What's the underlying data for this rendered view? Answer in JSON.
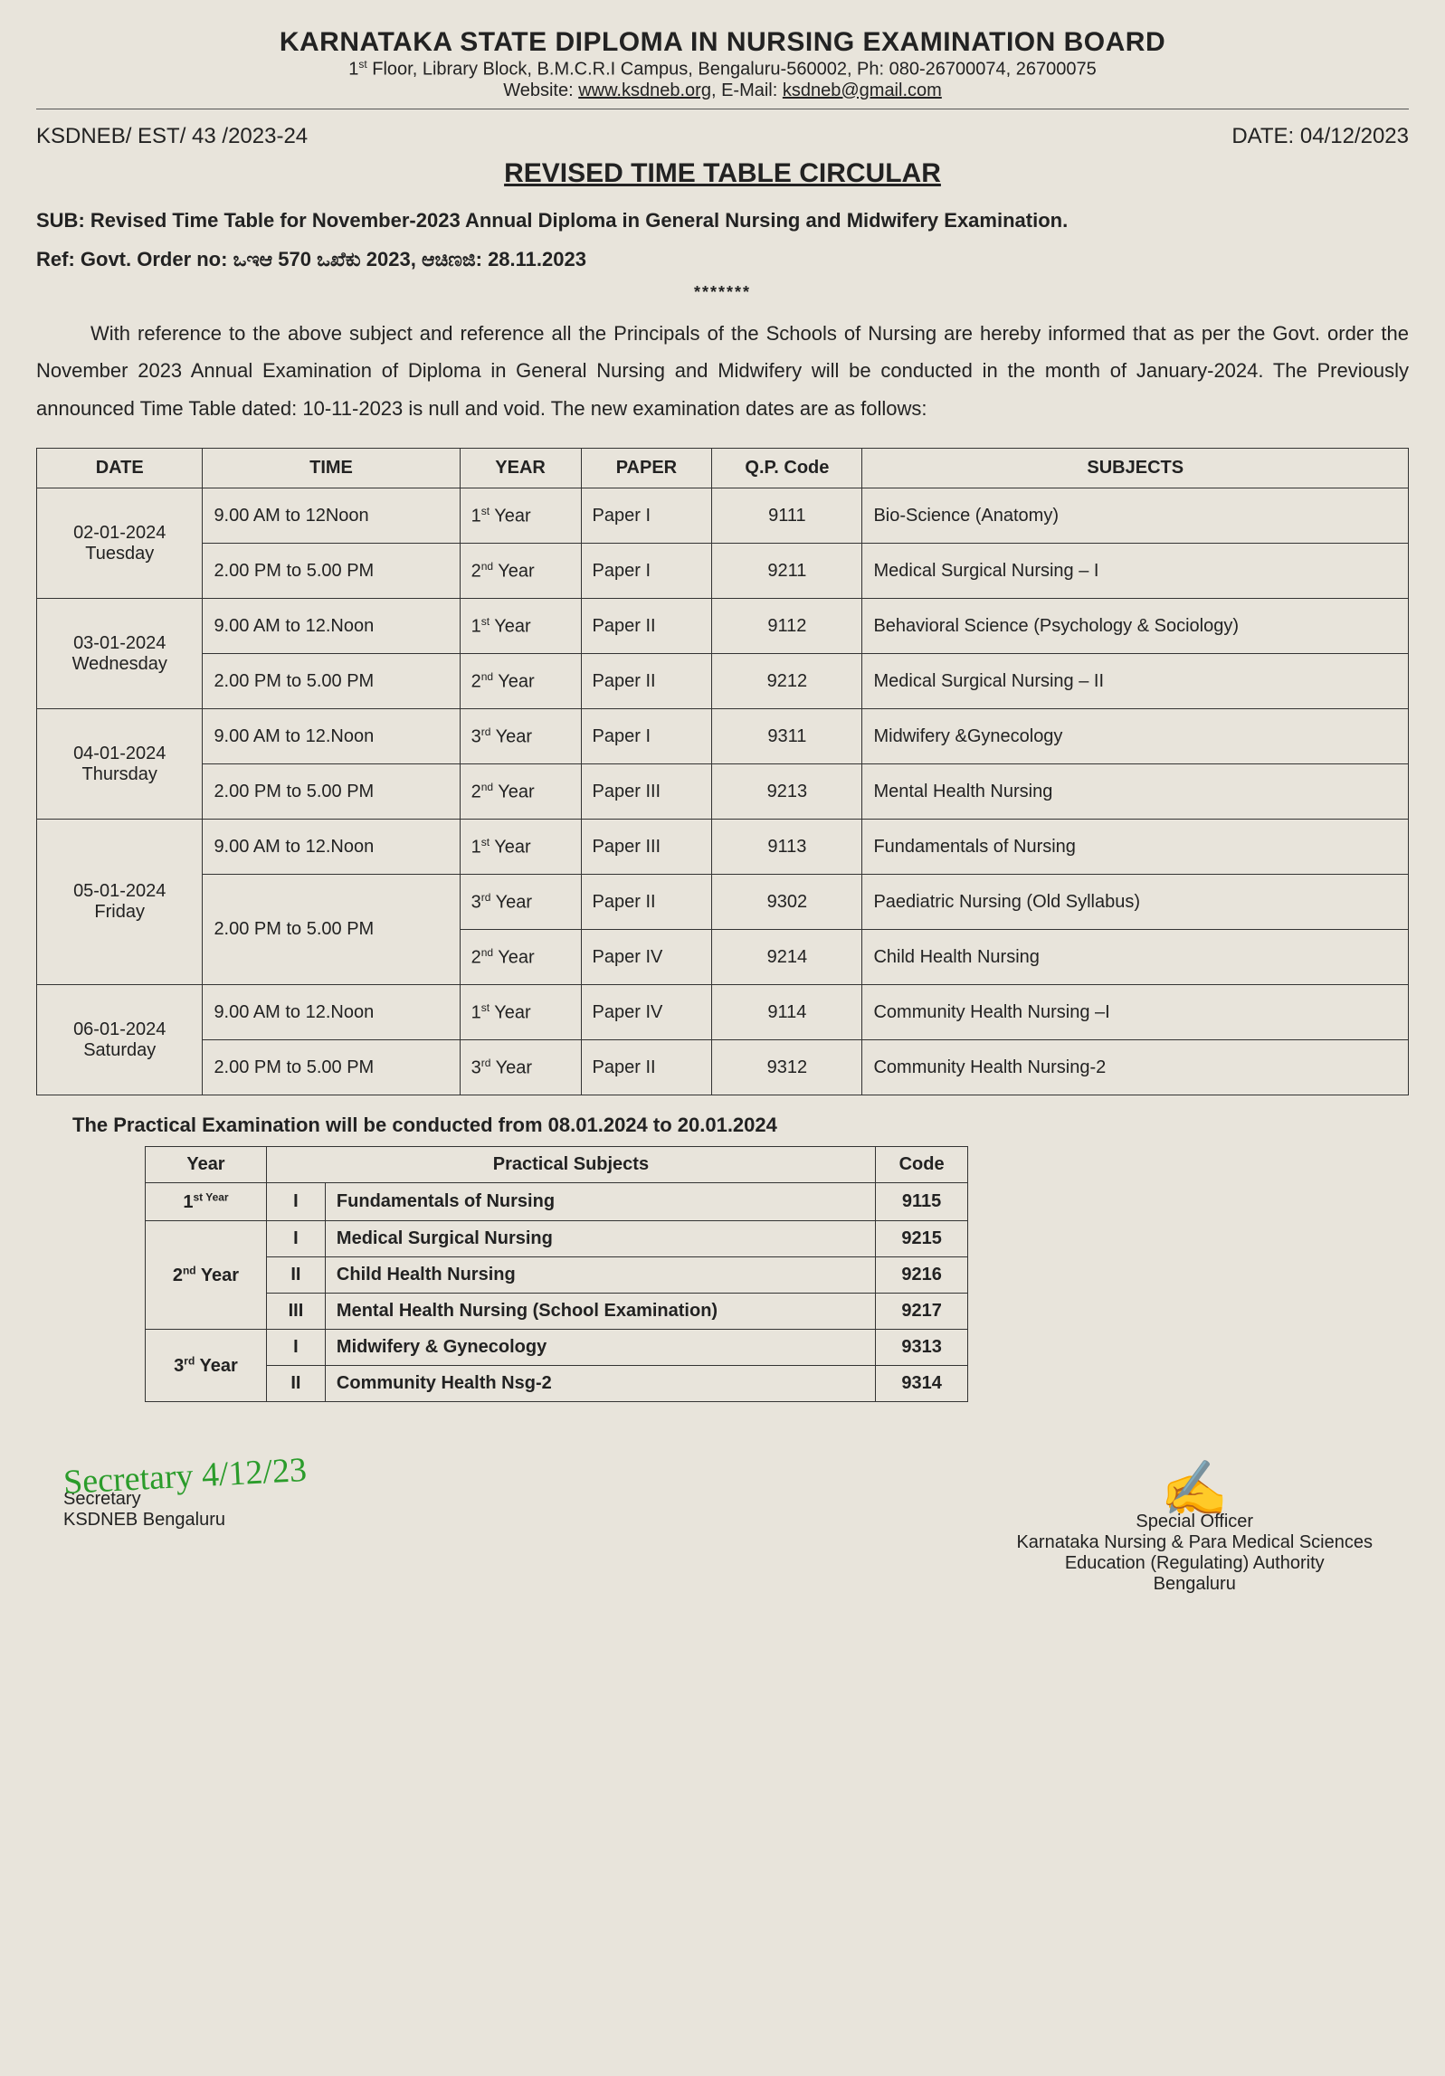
{
  "header": {
    "org": "KARNATAKA STATE DIPLOMA IN NURSING EXAMINATION BOARD",
    "address_html": "1<sup>st</sup> Floor, Library Block, B.M.C.R.I Campus, Bengaluru-560002, Ph: 080-26700074, 26700075",
    "website_label": "Website: ",
    "website": "www.ksdneb.org",
    "email_label": ", E-Mail: ",
    "email": "ksdneb@gmail.com"
  },
  "ref": "KSDNEB/ EST/ 43 /2023-24",
  "date_label": "DATE: 04/12/2023",
  "circular_title": "REVISED TIME TABLE CIRCULAR",
  "sub_label": "SUB: ",
  "sub_text": "Revised Time Table for November-2023 Annual Diploma in General Nursing and Midwifery Examination.",
  "ref_label": "Ref: Govt. Order no: ",
  "ref_text": "ಒಇಆ 570 ಒಖೆಕು 2023, ಆಚಿಣಜಿ: 28.11.2023",
  "body": "With reference to the above subject and reference all the Principals of the Schools of Nursing are hereby informed that as per the Govt. order the November 2023 Annual Examination of Diploma in General Nursing and Midwifery will be conducted in the month of January-2024. The Previously announced Time Table dated: 10-11-2023 is null and void. The new examination dates are as follows:",
  "main_table": {
    "headers": [
      "DATE",
      "TIME",
      "YEAR",
      "PAPER",
      "Q.P. Code",
      "SUBJECTS"
    ],
    "groups": [
      {
        "date": "02-01-2024 Tuesday",
        "rows": [
          {
            "time": "9.00 AM to 12Noon",
            "year": "1<sup>st</sup> Year",
            "paper": "Paper I",
            "code": "9111",
            "subject": "Bio-Science (Anatomy)"
          },
          {
            "time": "2.00 PM to 5.00 PM",
            "year": "2<sup>nd</sup> Year",
            "paper": "Paper I",
            "code": "9211",
            "subject": "Medical Surgical Nursing – I"
          }
        ]
      },
      {
        "date": "03-01-2024 Wednesday",
        "rows": [
          {
            "time": "9.00 AM to 12.Noon",
            "year": "1<sup>st</sup> Year",
            "paper": "Paper II",
            "code": "9112",
            "subject": "Behavioral Science (Psychology & Sociology)"
          },
          {
            "time": "2.00 PM to 5.00 PM",
            "year": "2<sup>nd</sup> Year",
            "paper": "Paper II",
            "code": "9212",
            "subject": "Medical Surgical Nursing – II"
          }
        ]
      },
      {
        "date": "04-01-2024 Thursday",
        "rows": [
          {
            "time": "9.00 AM to 12.Noon",
            "year": "3<sup>rd</sup> Year",
            "paper": "Paper I",
            "code": "9311",
            "subject": "Midwifery &Gynecology"
          },
          {
            "time": "2.00 PM to 5.00 PM",
            "year": "2<sup>nd</sup> Year",
            "paper": "Paper III",
            "code": "9213",
            "subject": "Mental Health Nursing"
          }
        ]
      },
      {
        "date": "05-01-2024 Friday",
        "rows": [
          {
            "time": "9.00 AM to 12.Noon",
            "year": "1<sup>st</sup> Year",
            "paper": "Paper III",
            "code": "9113",
            "subject": "Fundamentals of Nursing"
          },
          {
            "time": "2.00 PM to 5.00 PM",
            "year": "3<sup>rd</sup> Year",
            "paper": "Paper II",
            "code": "9302",
            "subject": "Paediatric Nursing (Old Syllabus)",
            "time_rowspan": 2
          },
          {
            "time": "",
            "year": "2<sup>nd</sup> Year",
            "paper": "Paper IV",
            "code": "9214",
            "subject": "Child Health Nursing"
          }
        ]
      },
      {
        "date": "06-01-2024 Saturday",
        "rows": [
          {
            "time": "9.00 AM to 12.Noon",
            "year": "1<sup>st</sup> Year",
            "paper": "Paper IV",
            "code": "9114",
            "subject": "Community Health Nursing –I"
          },
          {
            "time": "2.00 PM to 5.00 PM",
            "year": "3<sup>rd</sup> Year",
            "paper": "Paper II",
            "code": "9312",
            "subject": "Community Health Nursing-2"
          }
        ]
      }
    ]
  },
  "practical_header": "The Practical Examination will be conducted  from 08.01.2024 to 20.01.2024",
  "practical_table": {
    "headers": [
      "Year",
      "Practical Subjects",
      "Code"
    ],
    "groups": [
      {
        "year": "1<sup>st  Year</sup>",
        "rows": [
          {
            "num": "I",
            "subject": "Fundamentals of Nursing",
            "code": "9115"
          }
        ]
      },
      {
        "year": "2<sup>nd</sup> Year",
        "rows": [
          {
            "num": "I",
            "subject": "Medical Surgical Nursing",
            "code": "9215"
          },
          {
            "num": "II",
            "subject": "Child Health Nursing",
            "code": "9216"
          },
          {
            "num": "III",
            "subject": "Mental Health Nursing (School Examination)",
            "code": "9217"
          }
        ]
      },
      {
        "year": "3<sup>rd</sup> Year",
        "rows": [
          {
            "num": "I",
            "subject": "Midwifery & Gynecology",
            "code": "9313"
          },
          {
            "num": "II",
            "subject": "Community Health Nsg-2",
            "code": "9314"
          }
        ]
      }
    ]
  },
  "sign_left": {
    "title": "Secretary",
    "org": "KSDNEB Bengaluru"
  },
  "sign_right": {
    "title": "Special Officer",
    "line2": "Karnataka Nursing & Para Medical Sciences",
    "line3": "Education (Regulating) Authority",
    "line4": "Bengaluru"
  }
}
